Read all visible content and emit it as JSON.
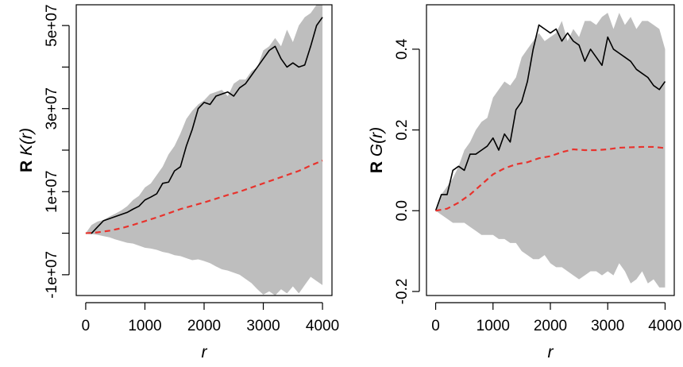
{
  "chart_data": [
    {
      "type": "line",
      "id": "left",
      "ylabel_bold": "R",
      "ylabel_func": "K(r)",
      "xlabel": "r",
      "xlim": [
        0,
        4000
      ],
      "ylim": [
        -15000000,
        55000000
      ],
      "xticks": [
        0,
        1000,
        2000,
        3000,
        4000
      ],
      "xtick_labels": [
        "0",
        "1000",
        "2000",
        "3000",
        "4000"
      ],
      "yticks": [
        -10000000,
        0,
        10000000,
        20000000,
        30000000,
        40000000,
        50000000
      ],
      "ytick_labels": [
        "-1e+07",
        "",
        "1e+07",
        "",
        "3e+07",
        "",
        "5e+07"
      ],
      "grid": false,
      "series": [
        {
          "role": "envelope",
          "color": "#bebebe",
          "x": [
            0,
            100,
            200,
            300,
            400,
            500,
            600,
            700,
            800,
            900,
            1000,
            1100,
            1200,
            1300,
            1400,
            1500,
            1600,
            1700,
            1800,
            1900,
            2000,
            2100,
            2200,
            2300,
            2400,
            2500,
            2600,
            2700,
            2800,
            2900,
            3000,
            3100,
            3200,
            3300,
            3400,
            3500,
            3600,
            3700,
            3800,
            3900,
            4000
          ],
          "upper": [
            0,
            2000000,
            2800000,
            3200000,
            4000000,
            4700000,
            5500000,
            6500000,
            8000000,
            9000000,
            11000000,
            12000000,
            14000000,
            16000000,
            19000000,
            21000000,
            24000000,
            27500000,
            29500000,
            31000000,
            32000000,
            33500000,
            34000000,
            34500000,
            33000000,
            36000000,
            37000000,
            37000000,
            39000000,
            40000000,
            44000000,
            45000000,
            47000000,
            45000000,
            49000000,
            46000000,
            50000000,
            52000000,
            53000000,
            55000000,
            56000000
          ],
          "lower": [
            0,
            -200000,
            -400000,
            -700000,
            -1000000,
            -1500000,
            -1900000,
            -2300000,
            -2500000,
            -3000000,
            -3500000,
            -3700000,
            -4000000,
            -4500000,
            -4800000,
            -5300000,
            -5500000,
            -6000000,
            -6500000,
            -6300000,
            -6700000,
            -7200000,
            -8000000,
            -8700000,
            -9000000,
            -9500000,
            -10000000,
            -11000000,
            -12000000,
            -13500000,
            -14800000,
            -14000000,
            -15000000,
            -13500000,
            -14500000,
            -12800000,
            -14500000,
            -12500000,
            -10500000,
            -11500000,
            -12500000
          ]
        },
        {
          "role": "observed",
          "color": "#000000",
          "style": "solid",
          "x": [
            0,
            100,
            200,
            300,
            400,
            500,
            600,
            700,
            800,
            900,
            1000,
            1100,
            1200,
            1300,
            1400,
            1500,
            1600,
            1700,
            1800,
            1900,
            2000,
            2100,
            2200,
            2300,
            2400,
            2500,
            2600,
            2700,
            2800,
            2900,
            3000,
            3100,
            3200,
            3300,
            3400,
            3500,
            3600,
            3700,
            3800,
            3900,
            4000
          ],
          "values": [
            0,
            0,
            1500000,
            3000000,
            3500000,
            4000000,
            4500000,
            5000000,
            5800000,
            6500000,
            8000000,
            8700000,
            9500000,
            12000000,
            12300000,
            15000000,
            16000000,
            21000000,
            25000000,
            30000000,
            31500000,
            31000000,
            33000000,
            33500000,
            34000000,
            33000000,
            35000000,
            36000000,
            38000000,
            40000000,
            42000000,
            44000000,
            45000000,
            42000000,
            40000000,
            41000000,
            40000000,
            40500000,
            45000000,
            50000000,
            52000000
          ]
        },
        {
          "role": "theoretical",
          "color": "#e8332d",
          "style": "dashed",
          "x": [
            0,
            200,
            400,
            600,
            800,
            1000,
            1200,
            1400,
            1600,
            1800,
            2000,
            2200,
            2400,
            2600,
            2800,
            3000,
            3200,
            3400,
            3600,
            3800,
            4000
          ],
          "values": [
            0,
            200000,
            600000,
            1200000,
            2000000,
            2900000,
            3800000,
            4800000,
            5800000,
            6600000,
            7400000,
            8300000,
            9200000,
            10000000,
            11000000,
            12000000,
            13000000,
            14000000,
            15000000,
            16300000,
            17500000
          ]
        }
      ]
    },
    {
      "type": "line",
      "id": "right",
      "ylabel_bold": "R",
      "ylabel_func": "G(r)",
      "xlabel": "r",
      "xlim": [
        0,
        4000
      ],
      "ylim": [
        -0.21,
        0.51
      ],
      "xticks": [
        0,
        1000,
        2000,
        3000,
        4000
      ],
      "xtick_labels": [
        "0",
        "1000",
        "2000",
        "3000",
        "4000"
      ],
      "yticks": [
        -0.2,
        0.0,
        0.2,
        0.4
      ],
      "ytick_labels": [
        "-0.2",
        "0.0",
        "0.2",
        "0.4"
      ],
      "grid": false,
      "series": [
        {
          "role": "envelope",
          "color": "#bebebe",
          "x": [
            0,
            100,
            200,
            300,
            400,
            500,
            600,
            700,
            800,
            900,
            1000,
            1100,
            1200,
            1300,
            1400,
            1500,
            1600,
            1700,
            1800,
            1900,
            2000,
            2100,
            2200,
            2300,
            2400,
            2500,
            2600,
            2700,
            2800,
            2900,
            3000,
            3100,
            3200,
            3300,
            3400,
            3500,
            3600,
            3700,
            3800,
            3900,
            4000
          ],
          "upper": [
            0,
            0.04,
            0.06,
            0.08,
            0.11,
            0.15,
            0.17,
            0.2,
            0.22,
            0.23,
            0.28,
            0.3,
            0.32,
            0.31,
            0.33,
            0.38,
            0.4,
            0.42,
            0.44,
            0.42,
            0.43,
            0.44,
            0.47,
            0.42,
            0.45,
            0.43,
            0.47,
            0.47,
            0.46,
            0.48,
            0.49,
            0.45,
            0.49,
            0.46,
            0.48,
            0.45,
            0.47,
            0.47,
            0.46,
            0.45,
            0.4
          ],
          "lower": [
            0,
            -0.01,
            -0.02,
            -0.03,
            -0.03,
            -0.03,
            -0.04,
            -0.05,
            -0.06,
            -0.06,
            -0.06,
            -0.07,
            -0.07,
            -0.08,
            -0.08,
            -0.1,
            -0.11,
            -0.12,
            -0.12,
            -0.11,
            -0.13,
            -0.14,
            -0.14,
            -0.15,
            -0.16,
            -0.17,
            -0.16,
            -0.15,
            -0.15,
            -0.16,
            -0.15,
            -0.16,
            -0.13,
            -0.15,
            -0.18,
            -0.17,
            -0.15,
            -0.18,
            -0.17,
            -0.19,
            -0.19
          ]
        },
        {
          "role": "observed",
          "color": "#000000",
          "style": "solid",
          "x": [
            0,
            100,
            200,
            300,
            400,
            500,
            600,
            700,
            800,
            900,
            1000,
            1100,
            1200,
            1300,
            1400,
            1500,
            1600,
            1700,
            1800,
            1900,
            2000,
            2100,
            2200,
            2300,
            2400,
            2500,
            2600,
            2700,
            2800,
            2900,
            3000,
            3100,
            3200,
            3300,
            3400,
            3500,
            3600,
            3700,
            3800,
            3900,
            4000
          ],
          "values": [
            0,
            0.04,
            0.04,
            0.1,
            0.11,
            0.1,
            0.14,
            0.14,
            0.15,
            0.16,
            0.18,
            0.15,
            0.19,
            0.17,
            0.25,
            0.27,
            0.32,
            0.4,
            0.46,
            0.45,
            0.44,
            0.45,
            0.42,
            0.44,
            0.42,
            0.41,
            0.37,
            0.4,
            0.38,
            0.36,
            0.43,
            0.4,
            0.39,
            0.38,
            0.37,
            0.35,
            0.34,
            0.33,
            0.31,
            0.3,
            0.32
          ]
        },
        {
          "role": "theoretical",
          "color": "#e8332d",
          "style": "dashed",
          "x": [
            0,
            200,
            400,
            600,
            800,
            1000,
            1200,
            1400,
            1600,
            1800,
            2000,
            2200,
            2400,
            2600,
            2800,
            3000,
            3200,
            3400,
            3600,
            3800,
            4000
          ],
          "values": [
            0,
            0.005,
            0.02,
            0.04,
            0.065,
            0.09,
            0.105,
            0.115,
            0.12,
            0.13,
            0.135,
            0.145,
            0.152,
            0.15,
            0.15,
            0.152,
            0.156,
            0.157,
            0.158,
            0.158,
            0.155
          ]
        }
      ]
    }
  ]
}
